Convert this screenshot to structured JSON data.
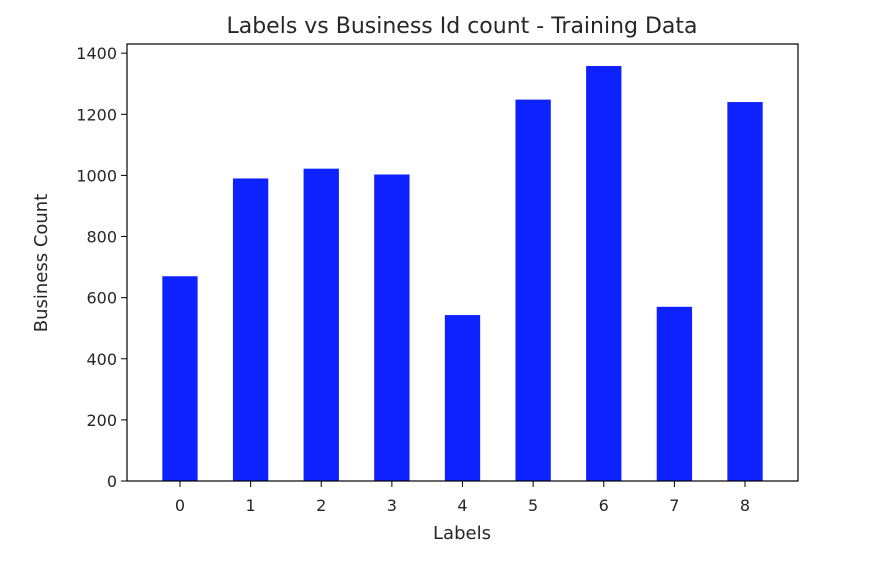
{
  "chart_data": {
    "type": "bar",
    "title": "Labels vs Business Id count - Training Data",
    "xlabel": "Labels",
    "ylabel": "Business Count",
    "categories": [
      "0",
      "1",
      "2",
      "3",
      "4",
      "5",
      "6",
      "7",
      "8"
    ],
    "values": [
      670,
      990,
      1022,
      1003,
      543,
      1248,
      1358,
      570,
      1240
    ],
    "ylim": [
      0,
      1430
    ],
    "yticks": [
      0,
      200,
      400,
      600,
      800,
      1000,
      1200,
      1400
    ],
    "bar_color": "#0d22ff",
    "grid": false,
    "legend": "none"
  }
}
